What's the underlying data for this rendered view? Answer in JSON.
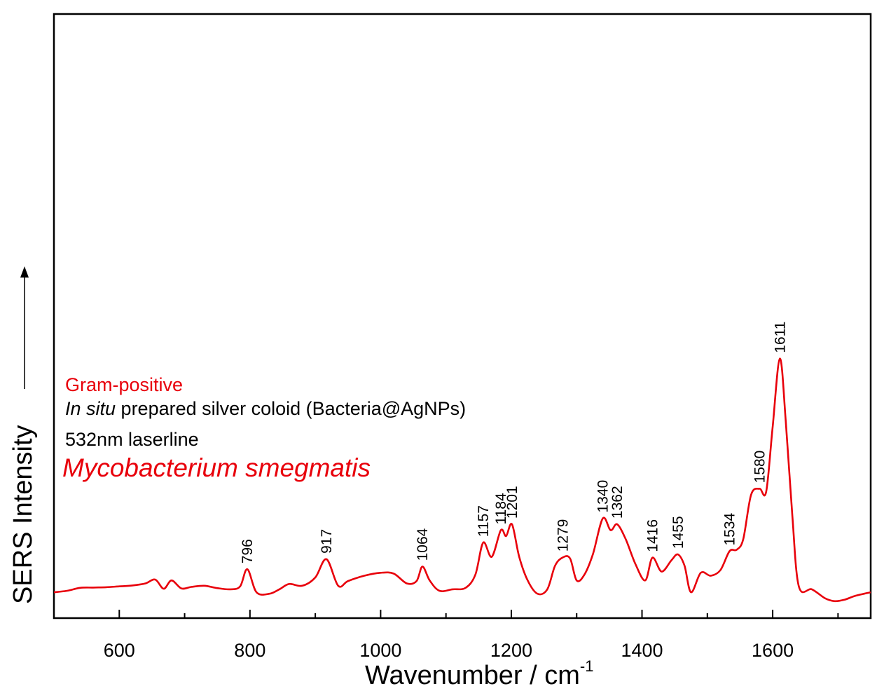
{
  "chart_data": {
    "type": "line",
    "xlabel": "Wavenumber / cm",
    "xlabel_sup": "-1",
    "ylabel": "SERS Intensity",
    "xlim": [
      500,
      1750
    ],
    "ylim": [
      0,
      100
    ],
    "x_ticks": [
      600,
      800,
      1000,
      1200,
      1400,
      1600
    ],
    "x_tick_labels": [
      "600",
      "800",
      "1000",
      "1200",
      "1400",
      "1600"
    ],
    "y_ticks_shown": false,
    "grid": false,
    "colors": {
      "spectrum": "#e8000b",
      "annotation_red": "#e8000b",
      "annotation_black": "#000000"
    },
    "series": [
      {
        "color": "#e8000b",
        "x": [
          500,
          520,
          540,
          560,
          580,
          600,
          620,
          640,
          655,
          668,
          680,
          695,
          710,
          730,
          750,
          770,
          785,
          796,
          810,
          830,
          845,
          860,
          880,
          900,
          917,
          935,
          950,
          975,
          1000,
          1020,
          1040,
          1055,
          1064,
          1075,
          1090,
          1110,
          1130,
          1145,
          1157,
          1170,
          1184,
          1192,
          1201,
          1212,
          1225,
          1240,
          1255,
          1267,
          1279,
          1290,
          1300,
          1312,
          1325,
          1340,
          1352,
          1362,
          1375,
          1390,
          1405,
          1416,
          1430,
          1445,
          1455,
          1465,
          1475,
          1490,
          1505,
          1520,
          1534,
          1545,
          1555,
          1567,
          1580,
          1590,
          1600,
          1611,
          1620,
          1630,
          1640,
          1660,
          1680,
          1695,
          1710,
          1725,
          1740,
          1750
        ],
        "y": [
          4,
          4.5,
          5.5,
          5.6,
          5.7,
          6,
          6.3,
          7,
          8.3,
          5.2,
          8,
          5.3,
          5.8,
          6.2,
          5.4,
          5,
          6,
          11.8,
          4,
          3.5,
          5,
          6.8,
          6.2,
          9,
          15.2,
          6.2,
          7.8,
          9.6,
          10.6,
          10.3,
          7,
          7.8,
          12.7,
          8,
          4.5,
          5,
          5.5,
          10,
          20.8,
          16,
          25,
          23,
          27,
          16,
          8,
          3.5,
          5,
          13,
          15.8,
          15.4,
          8,
          10,
          17,
          29,
          25,
          27,
          22,
          13.5,
          8,
          15.7,
          11,
          14.8,
          16.8,
          13,
          4,
          10.6,
          9.6,
          11.5,
          17.9,
          18.4,
          22,
          37,
          39,
          38,
          60,
          83,
          62,
          30,
          6,
          5,
          2,
          1,
          1.5,
          2.7,
          3.5,
          4
        ]
      }
    ],
    "peak_labels": [
      {
        "x": 796,
        "y": 11.8,
        "text": "796"
      },
      {
        "x": 917,
        "y": 15.2,
        "text": "917"
      },
      {
        "x": 1064,
        "y": 12.7,
        "text": "1064"
      },
      {
        "x": 1157,
        "y": 20.8,
        "text": "1157"
      },
      {
        "x": 1184,
        "y": 25,
        "text": "1184"
      },
      {
        "x": 1201,
        "y": 27,
        "text": "1201"
      },
      {
        "x": 1279,
        "y": 15.8,
        "text": "1279"
      },
      {
        "x": 1340,
        "y": 29,
        "text": "1340"
      },
      {
        "x": 1362,
        "y": 27,
        "text": "1362"
      },
      {
        "x": 1416,
        "y": 15.7,
        "text": "1416"
      },
      {
        "x": 1455,
        "y": 16.8,
        "text": "1455"
      },
      {
        "x": 1534,
        "y": 17.9,
        "text": "1534"
      },
      {
        "x": 1580,
        "y": 39,
        "text": "1580"
      },
      {
        "x": 1611,
        "y": 83,
        "text": "1611"
      }
    ]
  },
  "annotations": {
    "line1": "Gram-positive",
    "line2_italic": "In situ",
    "line2_rest": " prepared silver coloid (Bacteria@AgNPs)",
    "line3": "532nm laserline",
    "species": "Mycobacterium smegmatis"
  }
}
